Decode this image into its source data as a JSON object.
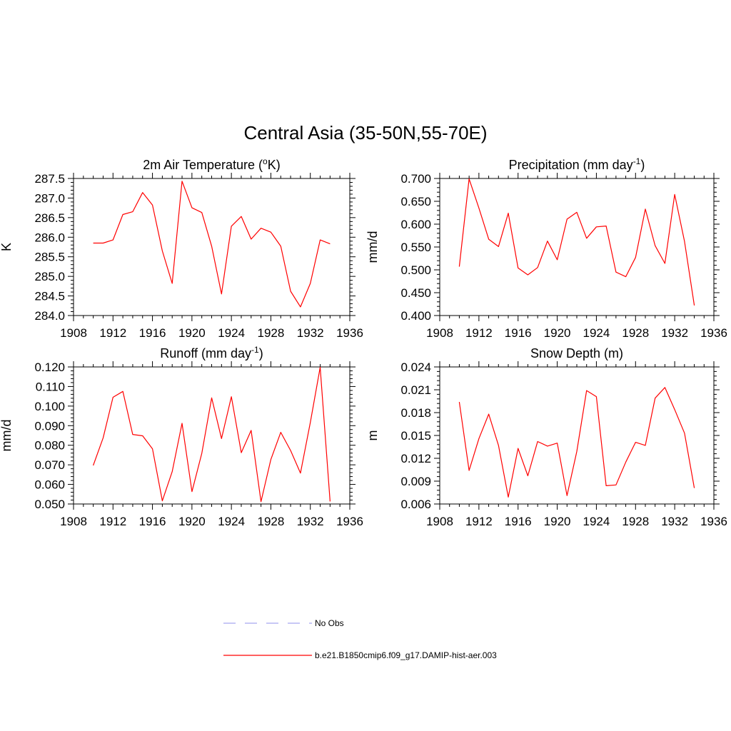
{
  "figure": {
    "title": "Central Asia (35-50N,55-70E)"
  },
  "legend": {
    "placement": "bottom-center",
    "entries": [
      {
        "label": "No Obs",
        "color": "#a7a7f0",
        "style": "dashed"
      },
      {
        "label": "b.e21.B1850cmip6.f09_g17.DAMIP-hist-aer.003",
        "color": "#ff0000",
        "style": "solid"
      }
    ]
  },
  "chart_data": [
    {
      "type": "line",
      "title_main": "2m Air Temperature (",
      "title_sup": "o",
      "title_tail": "K)",
      "ylabel": "K",
      "xlim": [
        1908,
        1936
      ],
      "ylim": [
        284.0,
        287.5
      ],
      "xticks": [
        "1908",
        "1912",
        "1916",
        "1920",
        "1924",
        "1928",
        "1932",
        "1936"
      ],
      "yticks": [
        "284.0",
        "284.5",
        "285.0",
        "285.5",
        "286.0",
        "286.5",
        "287.0",
        "287.5"
      ],
      "series": [
        {
          "color": "#ff0000",
          "x": [
            1910,
            1911,
            1912,
            1913,
            1914,
            1915,
            1916,
            1917,
            1918,
            1919,
            1920,
            1921,
            1922,
            1923,
            1924,
            1925,
            1926,
            1927,
            1928,
            1929,
            1930,
            1931,
            1932,
            1933,
            1934
          ],
          "y": [
            285.85,
            285.85,
            285.93,
            286.58,
            286.65,
            287.14,
            286.82,
            285.65,
            284.82,
            287.43,
            286.75,
            286.63,
            285.77,
            284.55,
            286.28,
            286.53,
            285.95,
            286.23,
            286.13,
            285.77,
            284.62,
            284.22,
            284.82,
            285.93,
            285.83
          ]
        }
      ]
    },
    {
      "type": "line",
      "title_main": "Precipitation (mm day",
      "title_sup": "-1",
      "title_tail": ")",
      "ylabel": "mm/d",
      "xlim": [
        1908,
        1936
      ],
      "ylim": [
        0.4,
        0.7
      ],
      "xticks": [
        "1908",
        "1912",
        "1916",
        "1920",
        "1924",
        "1928",
        "1932",
        "1936"
      ],
      "yticks": [
        "0.400",
        "0.450",
        "0.500",
        "0.550",
        "0.600",
        "0.650",
        "0.700"
      ],
      "series": [
        {
          "color": "#ff0000",
          "x": [
            1910,
            1911,
            1912,
            1913,
            1914,
            1915,
            1916,
            1917,
            1918,
            1919,
            1920,
            1921,
            1922,
            1923,
            1924,
            1925,
            1926,
            1927,
            1928,
            1929,
            1930,
            1931,
            1932,
            1933,
            1934
          ],
          "y": [
            0.507,
            0.699,
            0.635,
            0.567,
            0.551,
            0.624,
            0.504,
            0.489,
            0.505,
            0.563,
            0.522,
            0.611,
            0.626,
            0.569,
            0.594,
            0.596,
            0.495,
            0.485,
            0.527,
            0.633,
            0.553,
            0.514,
            0.665,
            0.562,
            0.422
          ]
        }
      ]
    },
    {
      "type": "line",
      "title_main": "Runoff (mm day",
      "title_sup": "-1",
      "title_tail": ")",
      "ylabel": "mm/d",
      "xlim": [
        1908,
        1936
      ],
      "ylim": [
        0.05,
        0.12
      ],
      "xticks": [
        "1908",
        "1912",
        "1916",
        "1920",
        "1924",
        "1928",
        "1932",
        "1936"
      ],
      "yticks": [
        "0.050",
        "0.060",
        "0.070",
        "0.080",
        "0.090",
        "0.100",
        "0.110",
        "0.120"
      ],
      "series": [
        {
          "color": "#ff0000",
          "x": [
            1910,
            1911,
            1912,
            1913,
            1914,
            1915,
            1916,
            1917,
            1918,
            1919,
            1920,
            1921,
            1922,
            1923,
            1924,
            1925,
            1926,
            1927,
            1928,
            1929,
            1930,
            1931,
            1932,
            1933,
            1934
          ],
          "y": [
            0.0697,
            0.0838,
            0.1045,
            0.1075,
            0.0855,
            0.0848,
            0.0782,
            0.0516,
            0.0665,
            0.0912,
            0.0563,
            0.0759,
            0.1042,
            0.0834,
            0.1048,
            0.0762,
            0.0876,
            0.0512,
            0.0727,
            0.0866,
            0.0773,
            0.0658,
            0.0916,
            0.1198,
            0.0513
          ]
        }
      ]
    },
    {
      "type": "line",
      "title_main": "Snow Depth (m)",
      "title_sup": "",
      "title_tail": "",
      "ylabel": "m",
      "xlim": [
        1908,
        1936
      ],
      "ylim": [
        0.006,
        0.024
      ],
      "xticks": [
        "1908",
        "1912",
        "1916",
        "1920",
        "1924",
        "1928",
        "1932",
        "1936"
      ],
      "yticks": [
        "0.006",
        "0.009",
        "0.012",
        "0.015",
        "0.018",
        "0.021",
        "0.024"
      ],
      "series": [
        {
          "color": "#ff0000",
          "x": [
            1910,
            1911,
            1912,
            1913,
            1914,
            1915,
            1916,
            1917,
            1918,
            1919,
            1920,
            1921,
            1922,
            1923,
            1924,
            1925,
            1926,
            1927,
            1928,
            1929,
            1930,
            1931,
            1932,
            1933,
            1934
          ],
          "y": [
            0.0194,
            0.0104,
            0.0146,
            0.0178,
            0.0137,
            0.0069,
            0.0133,
            0.0097,
            0.0142,
            0.0136,
            0.014,
            0.0071,
            0.0129,
            0.0209,
            0.0201,
            0.0084,
            0.0085,
            0.0115,
            0.0141,
            0.0137,
            0.0199,
            0.0213,
            0.0184,
            0.0153,
            0.0081
          ]
        }
      ]
    }
  ]
}
